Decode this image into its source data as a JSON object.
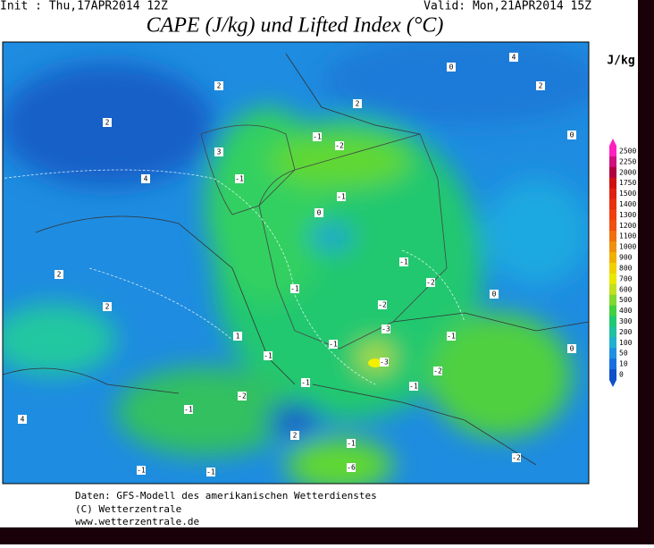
{
  "header": {
    "init": "Init : Thu,17APR2014 12Z",
    "valid": "Valid: Mon,21APR2014 15Z",
    "title": "CAPE (J/kg) und Lifted Index (°C)"
  },
  "legend": {
    "unit": "J/kg",
    "labels": [
      "2500",
      "2250",
      "2000",
      "1750",
      "1500",
      "1400",
      "1300",
      "1200",
      "1100",
      "1000",
      "900",
      "800",
      "700",
      "600",
      "500",
      "400",
      "300",
      "200",
      "100",
      "50",
      "10",
      "0"
    ]
  },
  "contour_labels": [
    "4",
    "0",
    "2",
    "0",
    "2",
    "2",
    "2",
    "3",
    "-1",
    "-2",
    "-1",
    "-1",
    "4",
    "0",
    "-1",
    "-2",
    "-1",
    "0",
    "-2",
    "2",
    "-3",
    "-1",
    "-1",
    "-3",
    "-1",
    "-2",
    "-1",
    "-2",
    "-1",
    "2",
    "-1",
    "-6",
    "-1",
    "-1",
    "-2",
    "0",
    "1",
    "4",
    "2",
    "-1"
  ],
  "footer": {
    "source": "Daten: GFS-Modell des amerikanischen Wetterdienstes",
    "copyright": "(C) Wetterzentrale",
    "url": "www.wetterzentrale.de"
  }
}
